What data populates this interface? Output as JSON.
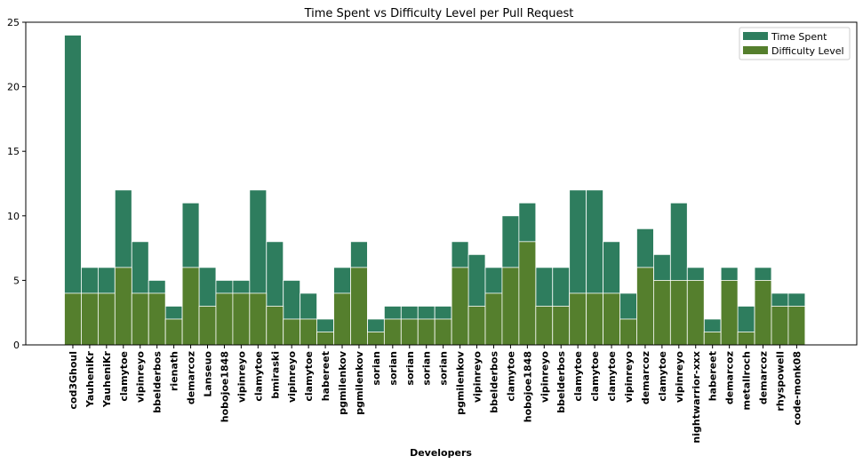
{
  "chart_data": {
    "type": "bar",
    "title": "Time Spent vs Difficulty Level per Pull Request",
    "xlabel": "Developers",
    "ylabel": "",
    "ylim": [
      0,
      25
    ],
    "yticks": [
      0,
      5,
      10,
      15,
      20,
      25
    ],
    "legend_position": "top-right",
    "grid": false,
    "categories": [
      "cod3Ghoul",
      "YauheniKr",
      "YauheniKr",
      "clamytoe",
      "vipinreyo",
      "bbelderbos",
      "rienath",
      "demarcoz",
      "Lanseuo",
      "hobojoe1848",
      "vipinreyo",
      "clamytoe",
      "bmiraski",
      "vipinreyo",
      "clamytoe",
      "habereet",
      "pgmilenkov",
      "pgmilenkov",
      "sorian",
      "sorian",
      "sorian",
      "sorian",
      "sorian",
      "pgmilenkov",
      "vipinreyo",
      "bbelderbos",
      "clamytoe",
      "hobojoe1848",
      "vipinreyo",
      "bbelderbos",
      "clamytoe",
      "clamytoe",
      "clamytoe",
      "vipinreyo",
      "demarcoz",
      "clamytoe",
      "vipinreyo",
      "nightwarrior-xxx",
      "habereet",
      "demarcoz",
      "metallroch",
      "demarcoz",
      "rhyspowell",
      "code-monk08"
    ],
    "series": [
      {
        "name": "Time Spent",
        "color": "#2e7d5e",
        "values": [
          24,
          6,
          6,
          12,
          8,
          5,
          3,
          11,
          6,
          5,
          5,
          12,
          8,
          5,
          4,
          2,
          6,
          8,
          2,
          3,
          3,
          3,
          3,
          8,
          7,
          6,
          10,
          11,
          6,
          6,
          12,
          12,
          8,
          4,
          9,
          7,
          11,
          6,
          2,
          6,
          3,
          6,
          4,
          4
        ]
      },
      {
        "name": "Difficulty Level",
        "color": "#557f2d",
        "values": [
          4,
          4,
          4,
          6,
          4,
          4,
          2,
          6,
          3,
          4,
          4,
          4,
          3,
          2,
          2,
          1,
          4,
          6,
          1,
          2,
          2,
          2,
          2,
          6,
          3,
          4,
          6,
          8,
          3,
          3,
          4,
          4,
          4,
          2,
          6,
          5,
          5,
          5,
          1,
          5,
          1,
          5,
          3,
          3
        ]
      }
    ]
  }
}
